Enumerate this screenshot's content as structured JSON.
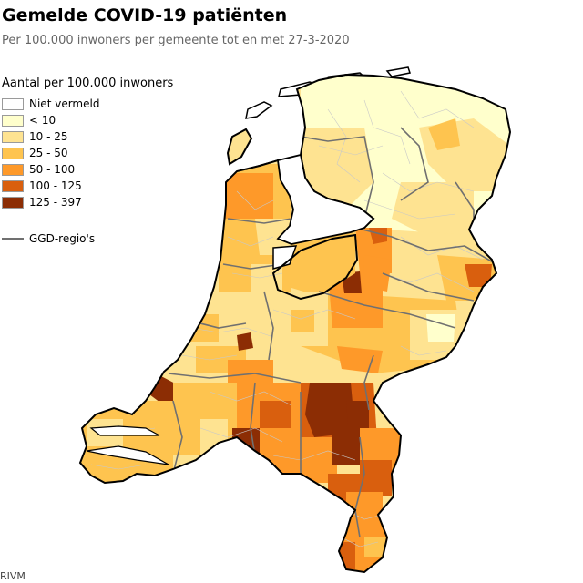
{
  "title": "Gemelde COVID-19 patiënten",
  "subtitle": "Per 100.000 inwoners per gemeente tot en met 27-3-2020",
  "legend": {
    "title": "Aantal per 100.000 inwoners",
    "items": [
      {
        "label": "Niet vermeld",
        "color": "#ffffff"
      },
      {
        "label": "< 10",
        "color": "#ffffcc"
      },
      {
        "label": "10 - 25",
        "color": "#fee391"
      },
      {
        "label": "25 - 50",
        "color": "#fec44f"
      },
      {
        "label": "50 - 100",
        "color": "#fe9929"
      },
      {
        "label": "100 - 125",
        "color": "#d95f0e"
      },
      {
        "label": "125 - 397",
        "color": "#8c2d04"
      }
    ],
    "ggd_label": "GGD-regio's",
    "ggd_color": "#707070"
  },
  "source": "RIVM",
  "map": {
    "country": "Nederland",
    "water_color": "#ffffff",
    "border_color": "#000000"
  }
}
